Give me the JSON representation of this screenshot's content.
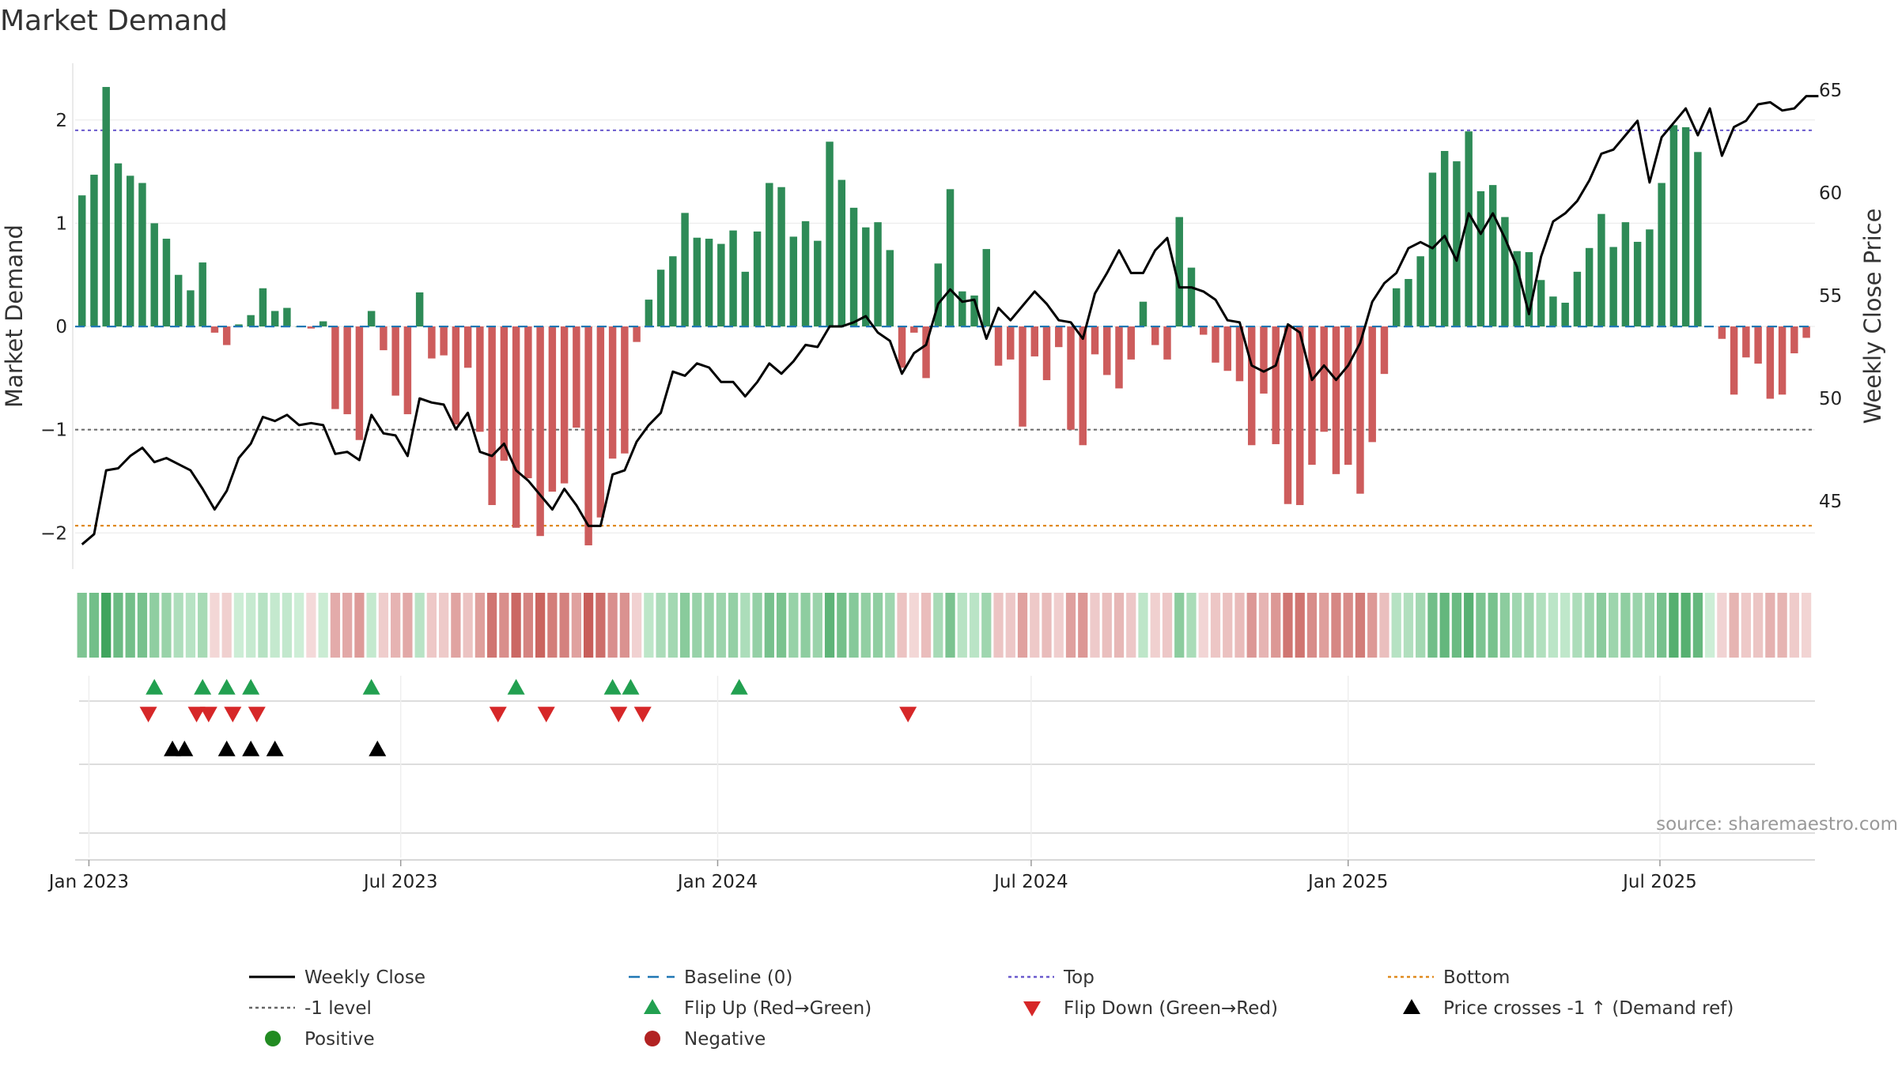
{
  "title": "Market Demand",
  "source": "source: sharemaestro.com",
  "colors": {
    "positive_bar": "#2e8b57",
    "negative_bar": "#cd5c5c",
    "close_line": "#000000",
    "baseline": "#1f77b4",
    "top": "#6a5acd",
    "minus1": "#666666",
    "bottom": "#e08a1e",
    "flip_up": "#22a050",
    "flip_down": "#d62728",
    "cross": "#000000",
    "positive_dot": "#228b22",
    "negative_dot": "#b22222"
  },
  "chart_data": {
    "type": "bar+line",
    "title": "Market Demand",
    "ylabel": "Market Demand",
    "y2label": "Weekly Close Price",
    "ylim": [
      -2.35,
      2.55
    ],
    "y2lim": [
      41.7,
      66.3
    ],
    "yticks": [
      -2,
      -1,
      0,
      1,
      2
    ],
    "ytick_labels": [
      "−2",
      "−1",
      "0",
      "1",
      "2"
    ],
    "y2ticks": [
      45,
      50,
      55,
      60,
      65
    ],
    "y2tick_labels": [
      "45",
      "50",
      "55",
      "60",
      "65"
    ],
    "reference_levels": {
      "top": 1.9,
      "minus1": -1.0,
      "bottom": -1.93,
      "baseline": 0
    },
    "x_start": "2022-12-28",
    "x_step_days": 7,
    "xticks": [
      {
        "date": "2023-01-01",
        "label": "Jan 2023"
      },
      {
        "date": "2023-07-01",
        "label": "Jul 2023"
      },
      {
        "date": "2024-01-01",
        "label": "Jan 2024"
      },
      {
        "date": "2024-07-01",
        "label": "Jul 2024"
      },
      {
        "date": "2025-01-01",
        "label": "Jan 2025"
      },
      {
        "date": "2025-07-01",
        "label": "Jul 2025"
      }
    ],
    "demand": [
      1.27,
      1.47,
      2.32,
      1.58,
      1.46,
      1.39,
      1.0,
      0.85,
      0.5,
      0.35,
      0.62,
      -0.06,
      -0.18,
      0.02,
      0.11,
      0.37,
      0.15,
      0.18,
      0.0,
      -0.02,
      0.05,
      -0.8,
      -0.85,
      -1.1,
      0.15,
      -0.23,
      -0.67,
      -0.85,
      0.33,
      -0.31,
      -0.28,
      -0.95,
      -0.4,
      -1.02,
      -1.73,
      -1.3,
      -1.95,
      -1.47,
      -2.03,
      -1.6,
      -1.52,
      -0.98,
      -2.12,
      -1.85,
      -1.28,
      -1.23,
      -0.15,
      0.26,
      0.55,
      0.68,
      1.1,
      0.86,
      0.85,
      0.8,
      0.93,
      0.53,
      0.92,
      1.39,
      1.35,
      0.87,
      1.02,
      0.83,
      1.79,
      1.42,
      1.15,
      0.96,
      1.01,
      0.74,
      -0.4,
      -0.06,
      -0.5,
      0.61,
      1.33,
      0.34,
      0.3,
      0.75,
      -0.38,
      -0.32,
      -0.97,
      -0.29,
      -0.52,
      -0.2,
      -1.0,
      -1.15,
      -0.27,
      -0.47,
      -0.6,
      -0.32,
      0.24,
      -0.18,
      -0.32,
      1.06,
      0.57,
      -0.08,
      -0.35,
      -0.43,
      -0.53,
      -1.15,
      -0.65,
      -1.14,
      -1.72,
      -1.73,
      -1.34,
      -1.02,
      -1.43,
      -1.34,
      -1.62,
      -1.12,
      -0.46,
      0.37,
      0.46,
      0.68,
      1.49,
      1.7,
      1.6,
      1.89,
      1.31,
      1.37,
      1.06,
      0.73,
      0.72,
      0.45,
      0.29,
      0.23,
      0.53,
      0.76,
      1.09,
      0.77,
      1.01,
      0.82,
      0.94,
      1.39,
      1.95,
      1.93,
      1.69,
      0.0,
      -0.12,
      -0.66,
      -0.3,
      -0.36,
      -0.7,
      -0.66,
      -0.26,
      -0.11
    ],
    "close": [
      42.9,
      43.4,
      46.5,
      46.6,
      47.2,
      47.6,
      46.9,
      47.1,
      46.8,
      46.5,
      45.6,
      44.6,
      45.5,
      47.1,
      47.8,
      49.1,
      48.9,
      49.2,
      48.7,
      48.8,
      48.7,
      47.3,
      47.4,
      47.0,
      49.2,
      48.3,
      48.2,
      47.2,
      50.0,
      49.8,
      49.7,
      48.5,
      49.3,
      47.4,
      47.2,
      47.8,
      46.5,
      46.0,
      45.3,
      44.6,
      45.6,
      44.8,
      43.8,
      43.8,
      46.3,
      46.5,
      47.9,
      48.7,
      49.3,
      51.3,
      51.1,
      51.7,
      51.5,
      50.8,
      50.8,
      50.1,
      50.8,
      51.7,
      51.2,
      51.8,
      52.6,
      52.5,
      53.5,
      53.5,
      53.7,
      54.0,
      53.2,
      52.8,
      51.2,
      52.2,
      52.6,
      54.6,
      55.3,
      54.7,
      54.8,
      52.9,
      54.4,
      53.8,
      54.5,
      55.2,
      54.6,
      53.8,
      53.7,
      52.9,
      55.1,
      56.1,
      57.2,
      56.1,
      56.1,
      57.2,
      57.8,
      55.4,
      55.4,
      55.2,
      54.8,
      53.8,
      53.7,
      51.6,
      51.3,
      51.6,
      53.6,
      53.2,
      50.9,
      51.6,
      50.9,
      51.6,
      52.7,
      54.7,
      55.6,
      56.1,
      57.3,
      57.6,
      57.3,
      57.9,
      56.7,
      59.0,
      58.0,
      59.0,
      57.8,
      56.4,
      54.1,
      56.9,
      58.6,
      59.0,
      59.6,
      60.6,
      61.9,
      62.1,
      62.8,
      63.5,
      60.5,
      62.7,
      63.4,
      64.1,
      62.8,
      64.1,
      61.8,
      63.2,
      63.5,
      64.3,
      64.4,
      64.0,
      64.1,
      64.7,
      64.7
    ]
  },
  "signals": {
    "flip_up": [
      6,
      10,
      12,
      14,
      23,
      35,
      43,
      45,
      54
    ],
    "flip_down": [
      5,
      9,
      10,
      12,
      14,
      34,
      38,
      44,
      46,
      68
    ],
    "price_cross": [
      7,
      8,
      12,
      14,
      16,
      24
    ]
  },
  "signals_note": "indices are weeks from x_start",
  "legend": [
    {
      "key": "close",
      "label": "Weekly Close"
    },
    {
      "key": "baseline",
      "label": "Baseline (0)"
    },
    {
      "key": "top",
      "label": "Top"
    },
    {
      "key": "bottom",
      "label": "Bottom"
    },
    {
      "key": "minus1",
      "label": "-1 level"
    },
    {
      "key": "flip_up",
      "label": "Flip Up (Red→Green)"
    },
    {
      "key": "flip_down",
      "label": "Flip Down (Green→Red)"
    },
    {
      "key": "cross",
      "label": "Price crosses -1 ↑ (Demand ref)"
    },
    {
      "key": "positive",
      "label": "Positive"
    },
    {
      "key": "negative",
      "label": "Negative"
    }
  ]
}
